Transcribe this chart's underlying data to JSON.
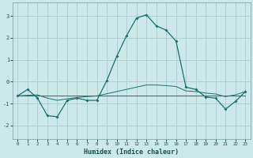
{
  "xlabel": "Humidex (Indice chaleur)",
  "background_color": "#cce8e8",
  "grid_color": "#aacccc",
  "line_color": "#1a7070",
  "xlim": [
    -0.5,
    23.5
  ],
  "ylim": [
    -2.6,
    3.6
  ],
  "yticks": [
    -2,
    -1,
    0,
    1,
    2,
    3
  ],
  "xticks": [
    0,
    1,
    2,
    3,
    4,
    5,
    6,
    7,
    8,
    9,
    10,
    11,
    12,
    13,
    14,
    15,
    16,
    17,
    18,
    19,
    20,
    21,
    22,
    23
  ],
  "main_x": [
    0,
    1,
    2,
    3,
    4,
    5,
    6,
    7,
    8,
    9,
    10,
    11,
    12,
    13,
    14,
    15,
    16,
    17,
    18,
    19,
    20,
    21,
    22,
    23
  ],
  "main_y": [
    -0.65,
    -0.35,
    -0.75,
    -1.55,
    -1.6,
    -0.85,
    -0.75,
    -0.85,
    -0.85,
    0.05,
    1.15,
    2.1,
    2.9,
    3.05,
    2.55,
    2.35,
    1.85,
    -0.25,
    -0.35,
    -0.7,
    -0.75,
    -1.25,
    -0.9,
    -0.45
  ],
  "flat_x": [
    0,
    1,
    2,
    3,
    4,
    5,
    6,
    7,
    8,
    9,
    10,
    11,
    12,
    13,
    14,
    15,
    16,
    17,
    18,
    19,
    20,
    21,
    22,
    23
  ],
  "flat_y": [
    -0.65,
    -0.65,
    -0.65,
    -0.65,
    -0.65,
    -0.65,
    -0.65,
    -0.65,
    -0.65,
    -0.65,
    -0.65,
    -0.65,
    -0.65,
    -0.65,
    -0.65,
    -0.65,
    -0.65,
    -0.65,
    -0.65,
    -0.65,
    -0.65,
    -0.65,
    -0.65,
    -0.65
  ],
  "slope_x": [
    0,
    1,
    2,
    3,
    4,
    5,
    6,
    7,
    8,
    9,
    10,
    11,
    12,
    13,
    14,
    15,
    16,
    17,
    18,
    19,
    20,
    21,
    22,
    23
  ],
  "slope_y": [
    -0.65,
    -0.62,
    -0.6,
    -0.75,
    -0.85,
    -0.78,
    -0.72,
    -0.68,
    -0.65,
    -0.55,
    -0.45,
    -0.35,
    -0.25,
    -0.15,
    -0.15,
    -0.18,
    -0.22,
    -0.42,
    -0.45,
    -0.52,
    -0.56,
    -0.68,
    -0.6,
    -0.45
  ]
}
